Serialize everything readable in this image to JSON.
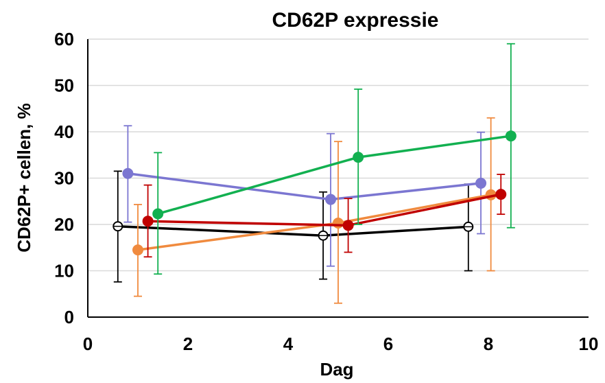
{
  "chart_data": {
    "type": "line",
    "title": "CD62P expressie",
    "xlabel": "Dag",
    "ylabel": "CD62P+ cellen, %",
    "xlim": [
      0,
      10
    ],
    "ylim": [
      0,
      60
    ],
    "xticks": [
      "0",
      "2",
      "4",
      "6",
      "8",
      "10"
    ],
    "yticks": [
      "0",
      "10",
      "20",
      "30",
      "40",
      "50",
      "60"
    ],
    "grid": "horizontal",
    "legend": "none",
    "series": [
      {
        "color": "#000000",
        "marker": "open-circle",
        "x": [
          0.6,
          4.7,
          7.6
        ],
        "y": [
          19.6,
          17.6,
          19.5
        ],
        "err_low": [
          7.6,
          8.2,
          10.0
        ],
        "err_high": [
          31.5,
          27.0,
          28.7
        ]
      },
      {
        "color": "#7B76D1",
        "marker": "filled-circle",
        "x": [
          0.8,
          4.85,
          7.85
        ],
        "y": [
          31.0,
          25.4,
          28.9
        ],
        "err_low": [
          20.5,
          11.0,
          18.0
        ],
        "err_high": [
          41.3,
          39.6,
          39.9
        ]
      },
      {
        "color": "#F08A3E",
        "marker": "filled-circle",
        "x": [
          1.0,
          5.0,
          8.05
        ],
        "y": [
          14.5,
          20.3,
          26.4
        ],
        "err_low": [
          4.5,
          3.0,
          10.0
        ],
        "err_high": [
          24.3,
          37.9,
          43.0
        ]
      },
      {
        "color": "#C00000",
        "marker": "filled-circle",
        "x": [
          1.2,
          5.2,
          8.25
        ],
        "y": [
          20.7,
          19.8,
          26.5
        ],
        "err_low": [
          13.0,
          14.0,
          22.2
        ],
        "err_high": [
          28.5,
          25.6,
          30.8
        ]
      },
      {
        "color": "#12B050",
        "marker": "filled-circle",
        "x": [
          1.4,
          5.4,
          8.45
        ],
        "y": [
          22.3,
          34.5,
          39.1
        ],
        "err_low": [
          9.3,
          20.0,
          19.3
        ],
        "err_high": [
          35.5,
          49.2,
          59.0
        ]
      }
    ]
  }
}
